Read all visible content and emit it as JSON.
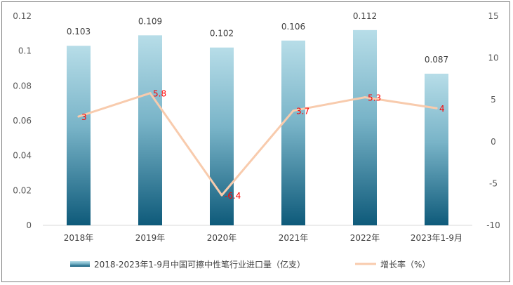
{
  "chart_data": {
    "type": "bar+line",
    "categories": [
      "2018年",
      "2019年",
      "2020年",
      "2021年",
      "2022年",
      "2023年1-9月"
    ],
    "series": [
      {
        "name": "2018-2023年1-9月中国可擦中性笔行业进口量（亿支）",
        "type": "bar",
        "axis": "left",
        "values": [
          0.103,
          0.109,
          0.102,
          0.106,
          0.112,
          0.087
        ],
        "labels": [
          "0.103",
          "0.109",
          "0.102",
          "0.106",
          "0.112",
          "0.087"
        ]
      },
      {
        "name": "增长率（%）",
        "type": "line",
        "axis": "right",
        "values": [
          3,
          5.8,
          -6.4,
          3.7,
          5.3,
          4
        ],
        "labels": [
          "3",
          "5.8",
          "-6.4",
          "3.7",
          "5.3",
          "4"
        ]
      }
    ],
    "y_left": {
      "min": 0,
      "max": 0.12,
      "ticks": [
        "0",
        "0.02",
        "0.04",
        "0.06",
        "0.08",
        "0.1",
        "0.12"
      ]
    },
    "y_right": {
      "min": -10,
      "max": 15,
      "ticks": [
        "-10",
        "-5",
        "0",
        "5",
        "10",
        "15"
      ]
    },
    "grid": false,
    "legend_position": "bottom",
    "colors": {
      "bar_top": "#b7dde8",
      "bar_bottom": "#0e5a7a",
      "line": "#f8cbad",
      "rate_label": "#ff0000"
    }
  }
}
